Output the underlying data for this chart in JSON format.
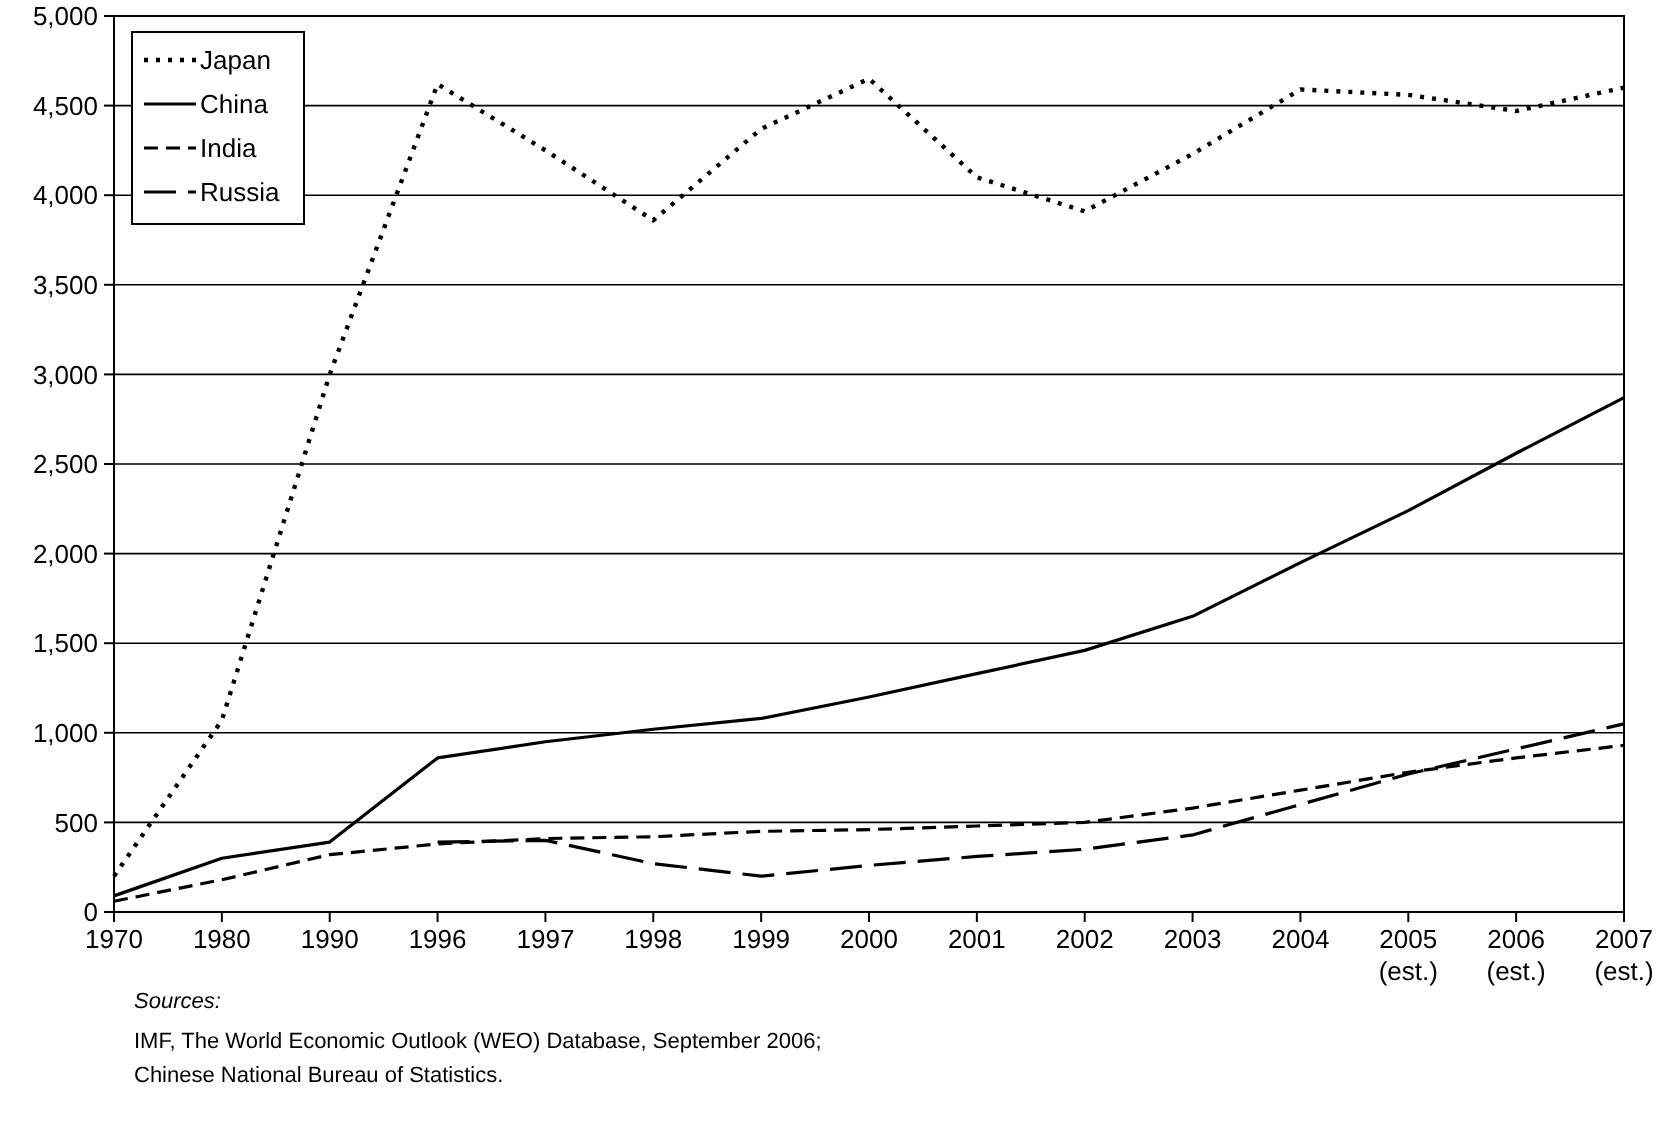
{
  "chart_data": {
    "type": "line",
    "categories": [
      "1970",
      "1980",
      "1990",
      "1996",
      "1997",
      "1998",
      "1999",
      "2000",
      "2001",
      "2002",
      "2003",
      "2004",
      "2005\n(est.)",
      "2006\n(est.)",
      "2007\n(est.)"
    ],
    "series": [
      {
        "name": "Japan",
        "color": "#000000",
        "line_style": "dotted",
        "values": [
          200,
          1070,
          3000,
          4620,
          4250,
          3860,
          4370,
          4650,
          4100,
          3910,
          4230,
          4590,
          4560,
          4470,
          4600
        ]
      },
      {
        "name": "China",
        "color": "#000000",
        "line_style": "solid",
        "values": [
          90,
          300,
          390,
          860,
          950,
          1020,
          1080,
          1200,
          1330,
          1460,
          1650,
          1950,
          2240,
          2560,
          2870
        ]
      },
      {
        "name": "India",
        "color": "#000000",
        "line_style": "dashed",
        "values": [
          60,
          180,
          320,
          380,
          410,
          420,
          450,
          460,
          480,
          500,
          580,
          680,
          780,
          860,
          930
        ]
      },
      {
        "name": "Russia",
        "color": "#000000",
        "line_style": "longdash",
        "values": [
          null,
          null,
          null,
          390,
          400,
          270,
          200,
          260,
          310,
          350,
          430,
          600,
          770,
          910,
          1050
        ]
      }
    ],
    "ylim": [
      0,
      5000
    ],
    "yticks": [
      0,
      {
        "value": 500,
        "label": "500"
      },
      {
        "value": 1000,
        "label": "1,000"
      },
      {
        "value": 1500,
        "label": "1,500"
      },
      {
        "value": 2000,
        "label": "2,000"
      },
      {
        "value": 2500,
        "label": "2,500"
      },
      {
        "value": 3000,
        "label": "3,000"
      },
      {
        "value": 3500,
        "label": "3,500"
      },
      {
        "value": 4000,
        "label": "4,000"
      },
      {
        "value": 4500,
        "label": "4,500"
      },
      {
        "value": 5000,
        "label": "5,000"
      }
    ],
    "grid": "y",
    "legend": "top left",
    "marker": "none",
    "annotations": [
      "Sources:",
      "IMF, The World Economic Outlook (WEO) Database, September 2006;",
      "Chinese National Bureau of Statistics."
    ]
  }
}
